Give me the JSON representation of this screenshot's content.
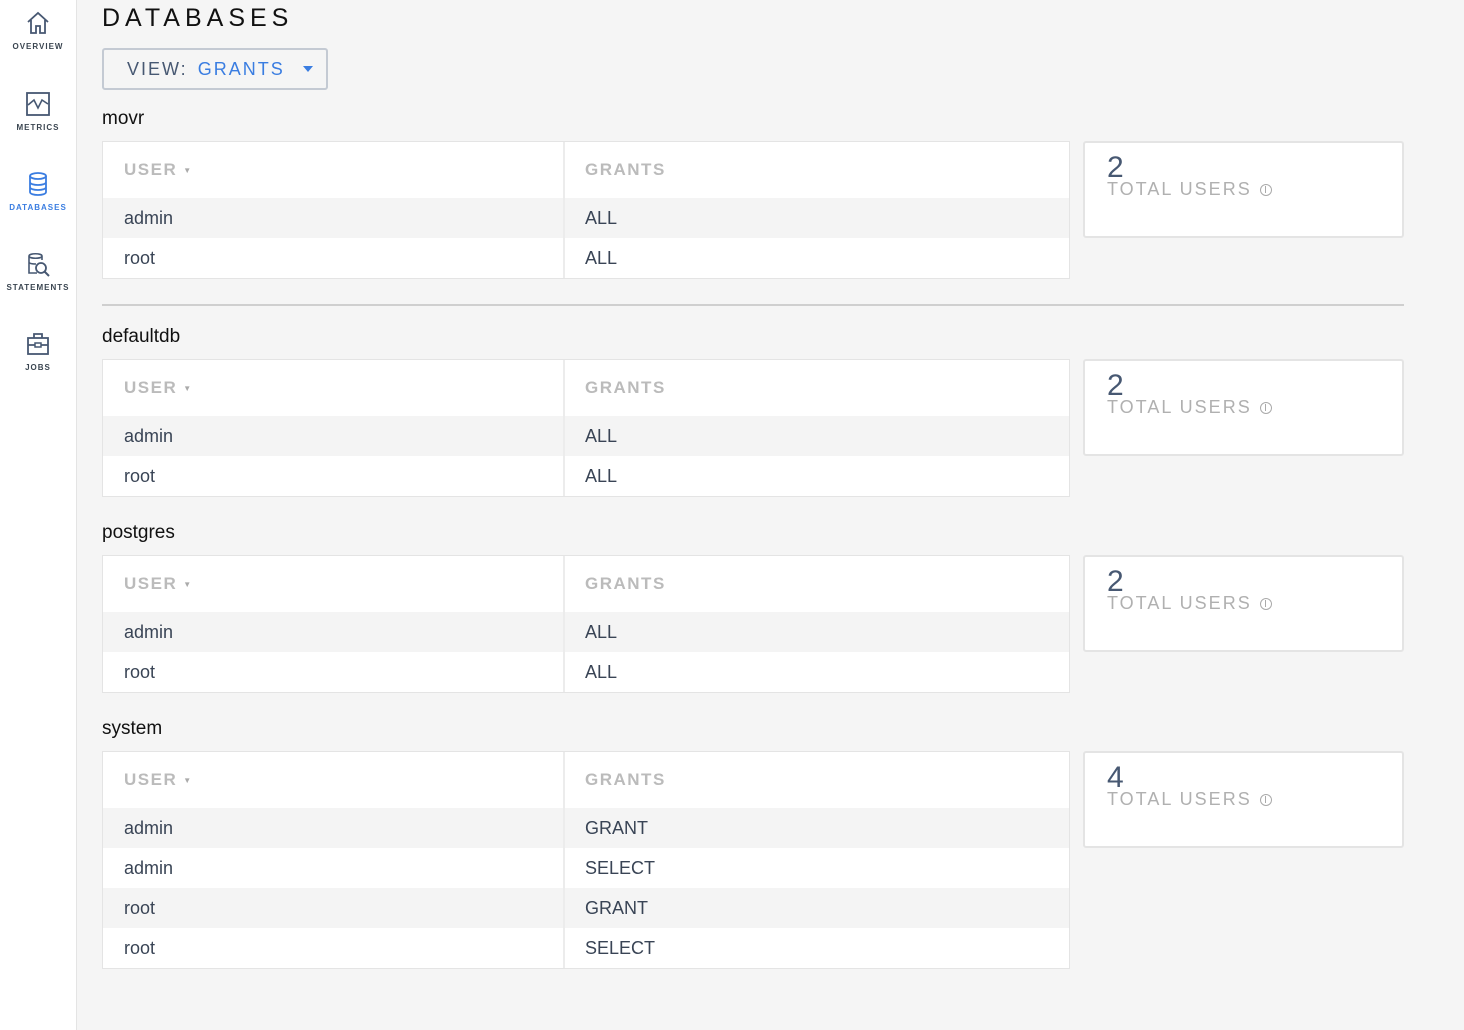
{
  "sidebar": {
    "items": [
      {
        "label": "OVERVIEW",
        "icon": "home-icon"
      },
      {
        "label": "METRICS",
        "icon": "metrics-icon"
      },
      {
        "label": "DATABASES",
        "icon": "database-icon",
        "active": true
      },
      {
        "label": "STATEMENTS",
        "icon": "statements-icon"
      },
      {
        "label": "JOBS",
        "icon": "jobs-icon"
      }
    ]
  },
  "page": {
    "title": "DATABASES",
    "view_label": "VIEW:",
    "view_value": "GRANTS"
  },
  "accent": "#3a7de1",
  "databases": [
    {
      "name": "movr",
      "headers": [
        "USER",
        "GRANTS"
      ],
      "rows": [
        [
          "admin",
          "ALL"
        ],
        [
          "root",
          "ALL"
        ]
      ],
      "total": "2",
      "total_label": "TOTAL USERS"
    },
    {
      "name": "defaultdb",
      "headers": [
        "USER",
        "GRANTS"
      ],
      "rows": [
        [
          "admin",
          "ALL"
        ],
        [
          "root",
          "ALL"
        ]
      ],
      "total": "2",
      "total_label": "TOTAL USERS"
    },
    {
      "name": "postgres",
      "headers": [
        "USER",
        "GRANTS"
      ],
      "rows": [
        [
          "admin",
          "ALL"
        ],
        [
          "root",
          "ALL"
        ]
      ],
      "total": "2",
      "total_label": "TOTAL USERS"
    },
    {
      "name": "system",
      "headers": [
        "USER",
        "GRANTS"
      ],
      "rows": [
        [
          "admin",
          "GRANT"
        ],
        [
          "admin",
          "SELECT"
        ],
        [
          "root",
          "GRANT"
        ],
        [
          "root",
          "SELECT"
        ]
      ],
      "total": "4",
      "total_label": "TOTAL USERS"
    }
  ]
}
